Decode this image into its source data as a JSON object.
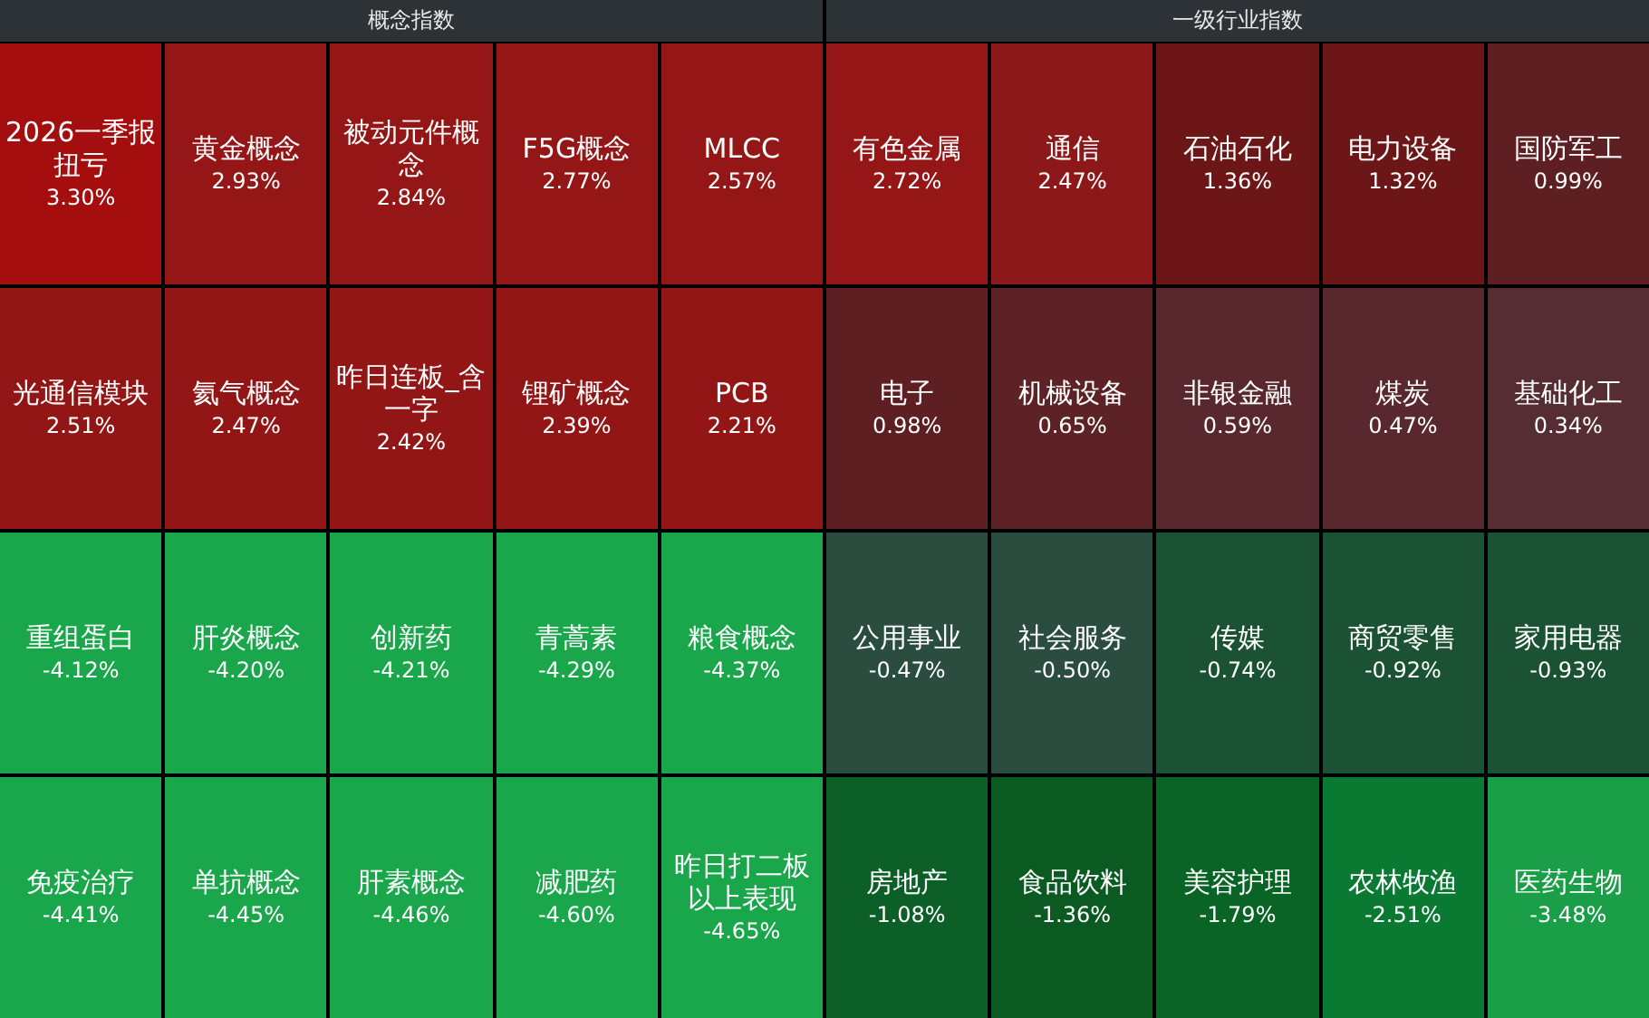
{
  "chart_data": [
    {
      "type": "other",
      "title": "概念指数",
      "categories": [
        "2026一季报扭亏",
        "黄金概念",
        "被动元件概念",
        "F5G概念",
        "MLCC",
        "光通信模块",
        "氦气概念",
        "昨日连板_含一字",
        "锂矿概念",
        "PCB",
        "重组蛋白",
        "肝炎概念",
        "创新药",
        "青蒿素",
        "粮食概念",
        "免疫治疗",
        "单抗概念",
        "肝素概念",
        "减肥药",
        "昨日打二板以上表现"
      ],
      "values": [
        3.3,
        2.93,
        2.84,
        2.77,
        2.57,
        2.51,
        2.47,
        2.42,
        2.39,
        2.21,
        -4.12,
        -4.2,
        -4.21,
        -4.29,
        -4.37,
        -4.41,
        -4.45,
        -4.46,
        -4.6,
        -4.65
      ],
      "value_labels": [
        "3.30%",
        "2.93%",
        "2.84%",
        "2.77%",
        "2.57%",
        "2.51%",
        "2.47%",
        "2.42%",
        "2.39%",
        "2.21%",
        "-4.12%",
        "-4.20%",
        "-4.21%",
        "-4.29%",
        "-4.37%",
        "-4.41%",
        "-4.45%",
        "-4.46%",
        "-4.60%",
        "-4.65%"
      ],
      "colors": [
        "#a50e0e",
        "#951616",
        "#951616",
        "#951616",
        "#951616",
        "#931616",
        "#931616",
        "#931616",
        "#931616",
        "#931616",
        "#1aa64a",
        "#1aa64a",
        "#1aa64a",
        "#1aa64a",
        "#1aa64a",
        "#1aa64a",
        "#1aa64a",
        "#1aa64a",
        "#1aa64a",
        "#1aa64a"
      ]
    },
    {
      "type": "other",
      "title": "一级行业指数",
      "categories": [
        "有色金属",
        "通信",
        "石油石化",
        "电力设备",
        "国防军工",
        "电子",
        "机械设备",
        "非银金融",
        "煤炭",
        "基础化工",
        "公用事业",
        "社会服务",
        "传媒",
        "商贸零售",
        "家用电器",
        "房地产",
        "食品饮料",
        "美容护理",
        "农林牧渔",
        "医药生物"
      ],
      "values": [
        2.72,
        2.47,
        1.36,
        1.32,
        0.99,
        0.98,
        0.65,
        0.59,
        0.47,
        0.34,
        -0.47,
        -0.5,
        -0.74,
        -0.92,
        -0.93,
        -1.08,
        -1.36,
        -1.79,
        -2.51,
        -3.48
      ],
      "value_labels": [
        "2.72%",
        "2.47%",
        "1.36%",
        "1.32%",
        "0.99%",
        "0.98%",
        "0.65%",
        "0.59%",
        "0.47%",
        "0.34%",
        "-0.47%",
        "-0.50%",
        "-0.74%",
        "-0.92%",
        "-0.93%",
        "-1.08%",
        "-1.36%",
        "-1.79%",
        "-2.51%",
        "-3.48%"
      ],
      "colors": [
        "#951616",
        "#8c1819",
        "#6c1617",
        "#6c1617",
        "#5e1f22",
        "#5e1f22",
        "#5c2226",
        "#58282e",
        "#58282e",
        "#552d33",
        "#2a4d40",
        "#2a4d40",
        "#1b5233",
        "#1b5233",
        "#1b5233",
        "#0d5f28",
        "#0a5a22",
        "#096426",
        "#0a7a33",
        "#1a9e47"
      ]
    }
  ]
}
